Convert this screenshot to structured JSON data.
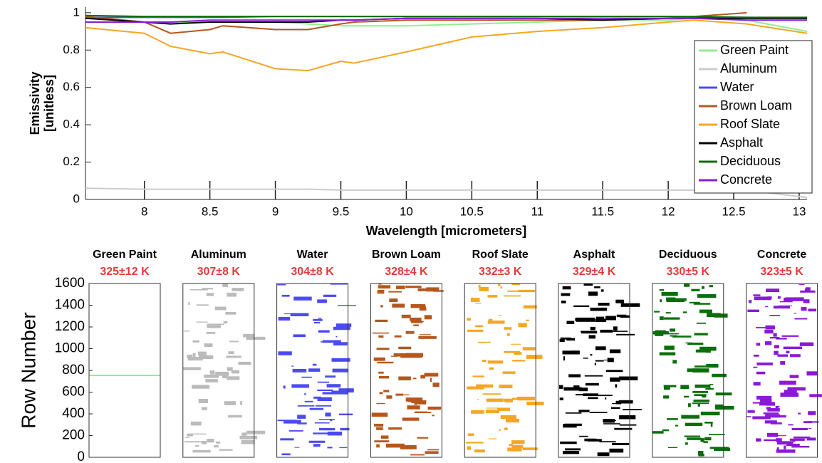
{
  "chart_data": [
    {
      "type": "line",
      "xlabel": "Wavelength [micrometers]",
      "ylabel": [
        "Emissivity",
        "[unitless]"
      ],
      "xlim": [
        7.55,
        13.06
      ],
      "ylim": [
        0,
        1.03
      ],
      "xticks": [
        8,
        8.5,
        9,
        9.5,
        10,
        10.5,
        11,
        11.5,
        12,
        12.5,
        13
      ],
      "yticks": [
        0,
        0.2,
        0.4,
        0.6,
        0.8,
        1
      ],
      "legend": "right",
      "x": [
        7.55,
        8,
        8.2,
        8.5,
        8.6,
        9,
        9.25,
        9.5,
        9.6,
        10,
        10.5,
        11,
        11.5,
        12,
        12.2,
        12.6,
        13.06
      ],
      "series": [
        {
          "name": "Green Paint",
          "color": "#90ee90",
          "values": [
            0.97,
            0.95,
            0.95,
            0.95,
            0.95,
            0.95,
            0.94,
            0.93,
            0.93,
            0.93,
            0.94,
            0.95,
            0.96,
            0.96,
            0.97,
            0.96,
            0.9
          ]
        },
        {
          "name": "Aluminum",
          "color": "#cccccc",
          "values": [
            0.06,
            0.055,
            0.055,
            0.055,
            0.055,
            0.055,
            0.055,
            0.05,
            0.05,
            0.05,
            0.05,
            0.05,
            0.05,
            0.05,
            0.05,
            0.05,
            0.01
          ]
        },
        {
          "name": "Water",
          "color": "#4b4bf0",
          "values": [
            0.975,
            0.975,
            0.975,
            0.975,
            0.975,
            0.98,
            0.98,
            0.98,
            0.98,
            0.98,
            0.98,
            0.98,
            0.98,
            0.98,
            0.975,
            0.975,
            0.97
          ]
        },
        {
          "name": "Brown Loam",
          "color": "#b5571c",
          "values": [
            0.98,
            0.95,
            0.89,
            0.91,
            0.93,
            0.91,
            0.91,
            0.94,
            0.95,
            0.96,
            0.96,
            0.96,
            0.96,
            0.97,
            0.98,
            1.0,
            null
          ]
        },
        {
          "name": "Roof Slate",
          "color": "#f5a623",
          "values": [
            0.92,
            0.89,
            0.82,
            0.78,
            0.79,
            0.7,
            0.69,
            0.74,
            0.73,
            0.79,
            0.87,
            0.9,
            0.92,
            0.95,
            0.96,
            0.94,
            0.89
          ]
        },
        {
          "name": "Asphalt",
          "color": "#000000",
          "values": [
            0.97,
            0.95,
            0.94,
            0.95,
            0.95,
            0.95,
            0.95,
            0.96,
            0.96,
            0.97,
            0.97,
            0.97,
            0.96,
            0.97,
            0.97,
            0.97,
            0.97
          ]
        },
        {
          "name": "Deciduous",
          "color": "#0a6e0a",
          "values": [
            0.985,
            0.98,
            0.98,
            0.98,
            0.98,
            0.98,
            0.98,
            0.98,
            0.98,
            0.98,
            0.98,
            0.98,
            0.98,
            0.98,
            0.98,
            0.975,
            0.975
          ]
        },
        {
          "name": "Concrete",
          "color": "#8a1ad6",
          "values": [
            0.95,
            0.95,
            0.95,
            0.96,
            0.96,
            0.96,
            0.96,
            0.96,
            0.96,
            0.97,
            0.97,
            0.97,
            0.97,
            0.97,
            0.97,
            0.96,
            0.96
          ]
        }
      ]
    },
    {
      "type": "panels",
      "ylabel": "Row Number",
      "ylim": [
        0,
        1600
      ],
      "yticks": [
        0,
        200,
        400,
        600,
        800,
        1000,
        1200,
        1400,
        1600
      ],
      "panels": [
        {
          "title": "Green Paint",
          "subtitle": "325±12 K",
          "color": "#90ee90"
        },
        {
          "title": "Aluminum",
          "subtitle": "307±8 K",
          "color": "#bbbbbb"
        },
        {
          "title": "Water",
          "subtitle": "304±8 K",
          "color": "#4b4bf0"
        },
        {
          "title": "Brown Loam",
          "subtitle": "328±4 K",
          "color": "#b5571c"
        },
        {
          "title": "Roof Slate",
          "subtitle": "332±3 K",
          "color": "#f5a623"
        },
        {
          "title": "Asphalt",
          "subtitle": "329±4 K",
          "color": "#000000"
        },
        {
          "title": "Deciduous",
          "subtitle": "330±5 K",
          "color": "#0a6e0a"
        },
        {
          "title": "Concrete",
          "subtitle": "323±5 K",
          "color": "#8a1ad6"
        }
      ]
    }
  ]
}
